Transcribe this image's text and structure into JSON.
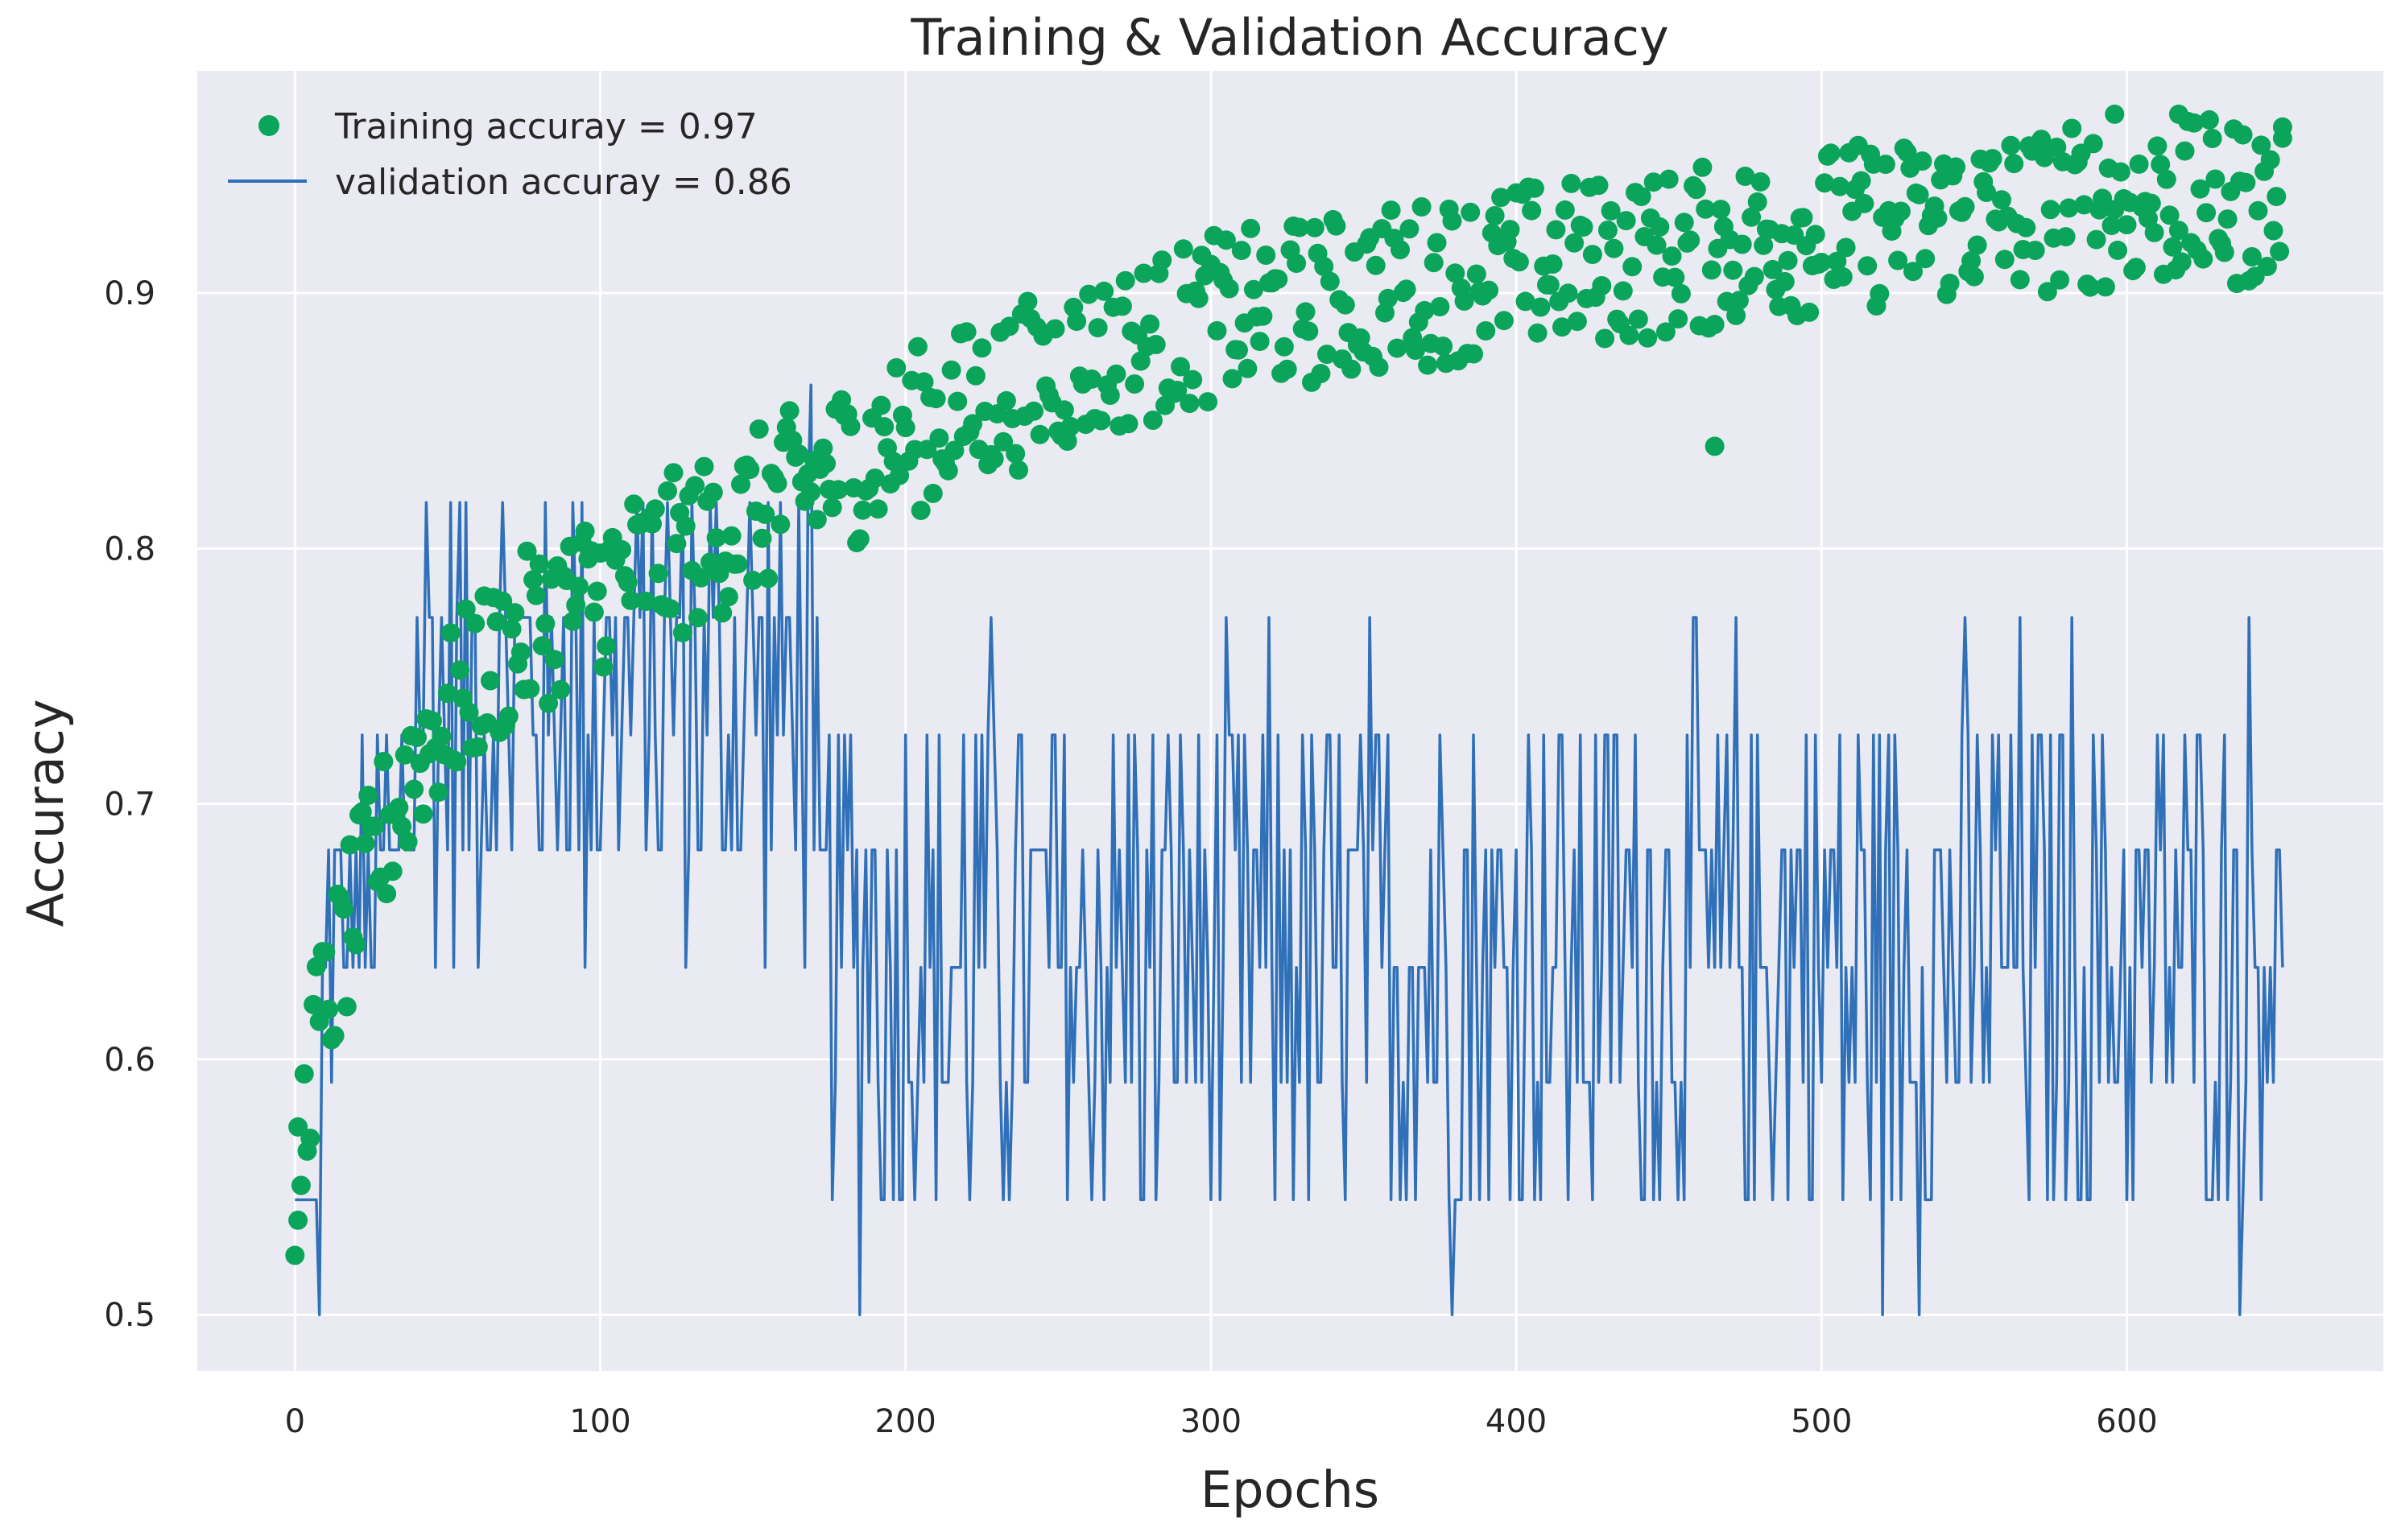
{
  "chart_data": {
    "type": "scatter+line",
    "title": "Training & Validation Accuracy",
    "xlabel": "Epochs",
    "ylabel": "Accuracy",
    "xlim": [
      -32,
      684
    ],
    "ylim": [
      0.478,
      0.987
    ],
    "xticks": [
      0,
      100,
      200,
      300,
      400,
      500,
      600
    ],
    "yticks": [
      0.5,
      0.6,
      0.7,
      0.8,
      0.9
    ],
    "ytick_labels": [
      "0.5",
      "0.6",
      "0.7",
      "0.8",
      "0.9"
    ],
    "grid": true,
    "background_color": "#eaeaf2",
    "legend_position": "upper-left",
    "series": [
      {
        "name": "Training accuray = 0.97",
        "kind": "scatter",
        "color": "#0aa55a",
        "n_epochs": 652,
        "trend_keypoints_x": [
          0,
          5,
          10,
          20,
          30,
          40,
          60,
          80,
          100,
          130,
          160,
          200,
          250,
          300,
          350,
          400,
          450,
          500,
          550,
          600,
          651
        ],
        "trend_keypoints_y": [
          0.54,
          0.6,
          0.62,
          0.66,
          0.69,
          0.72,
          0.75,
          0.77,
          0.785,
          0.8,
          0.82,
          0.845,
          0.87,
          0.89,
          0.9,
          0.91,
          0.915,
          0.925,
          0.93,
          0.935,
          0.935
        ],
        "spread": 0.022,
        "notable_points": [
          {
            "x": 1,
            "y": 0.537
          },
          {
            "x": 465,
            "y": 0.84
          },
          {
            "x": 617,
            "y": 0.97
          },
          {
            "x": 596,
            "y": 0.97
          },
          {
            "x": 651,
            "y": 0.965
          }
        ]
      },
      {
        "name": "validation accuray = 0.86",
        "kind": "line",
        "color": "#2f70b8",
        "n_epochs": 652,
        "levels": [
          0.5,
          0.545,
          0.591,
          0.636,
          0.682,
          0.727,
          0.773,
          0.818,
          0.864
        ],
        "phases": [
          {
            "from": 0,
            "to": 8,
            "values_hint": [
              0.545,
              0.5
            ]
          },
          {
            "from": 8,
            "to": 40,
            "range": [
              0.591,
              0.727
            ]
          },
          {
            "from": 40,
            "to": 170,
            "range": [
              0.636,
              0.864
            ]
          },
          {
            "from": 170,
            "to": 651,
            "range": [
              0.5,
              0.773
            ]
          }
        ],
        "last_value": 0.636
      }
    ]
  }
}
